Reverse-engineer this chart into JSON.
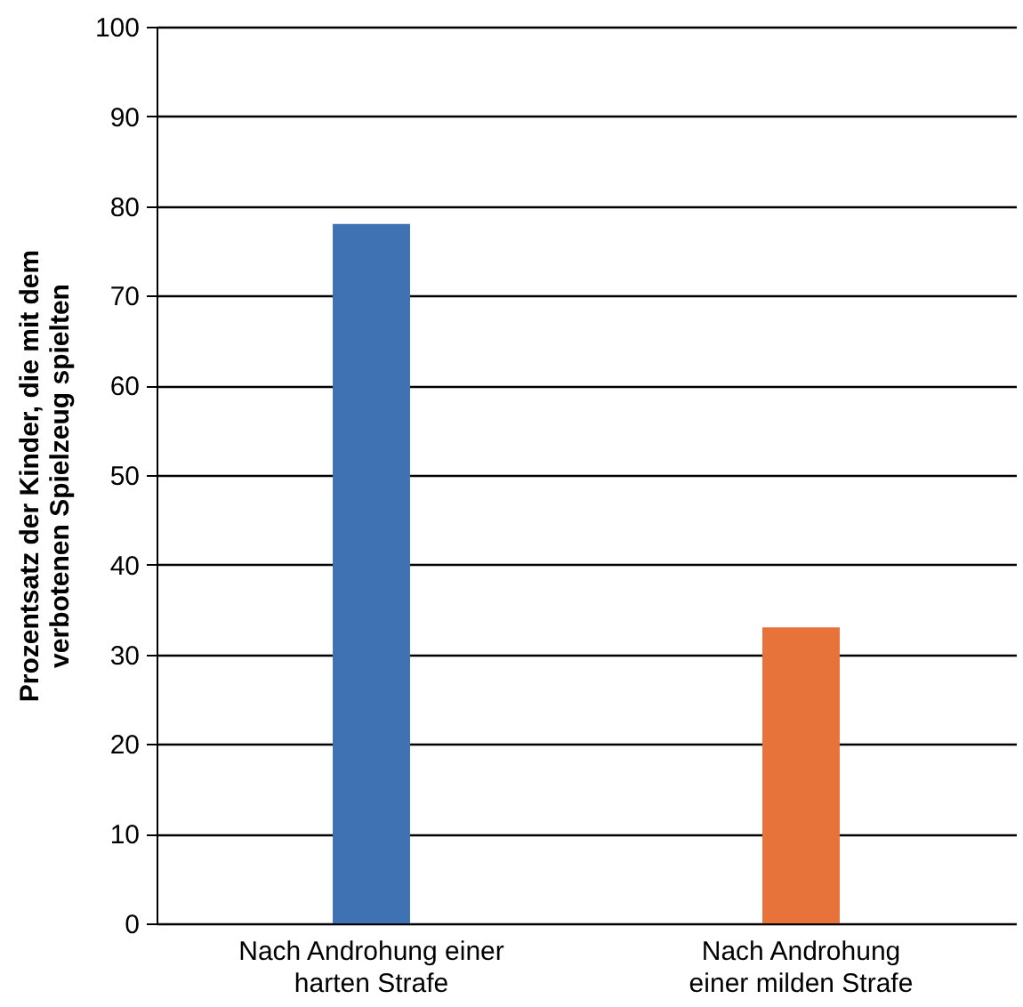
{
  "chart_data": {
    "type": "bar",
    "ylabel": "Prozentsatz der Kinder, die mit dem\nverbotenen Spielzeug spielten",
    "categories": [
      "Nach Androhung einer\nharten Strafe",
      "Nach Androhung\neiner milden Strafe"
    ],
    "values": [
      78,
      33
    ],
    "colors": [
      "#3f72b3",
      "#e8733a"
    ],
    "ylim": [
      0,
      100
    ],
    "yticks": [
      0,
      10,
      20,
      30,
      40,
      50,
      60,
      70,
      80,
      90,
      100
    ],
    "grid": "y"
  }
}
